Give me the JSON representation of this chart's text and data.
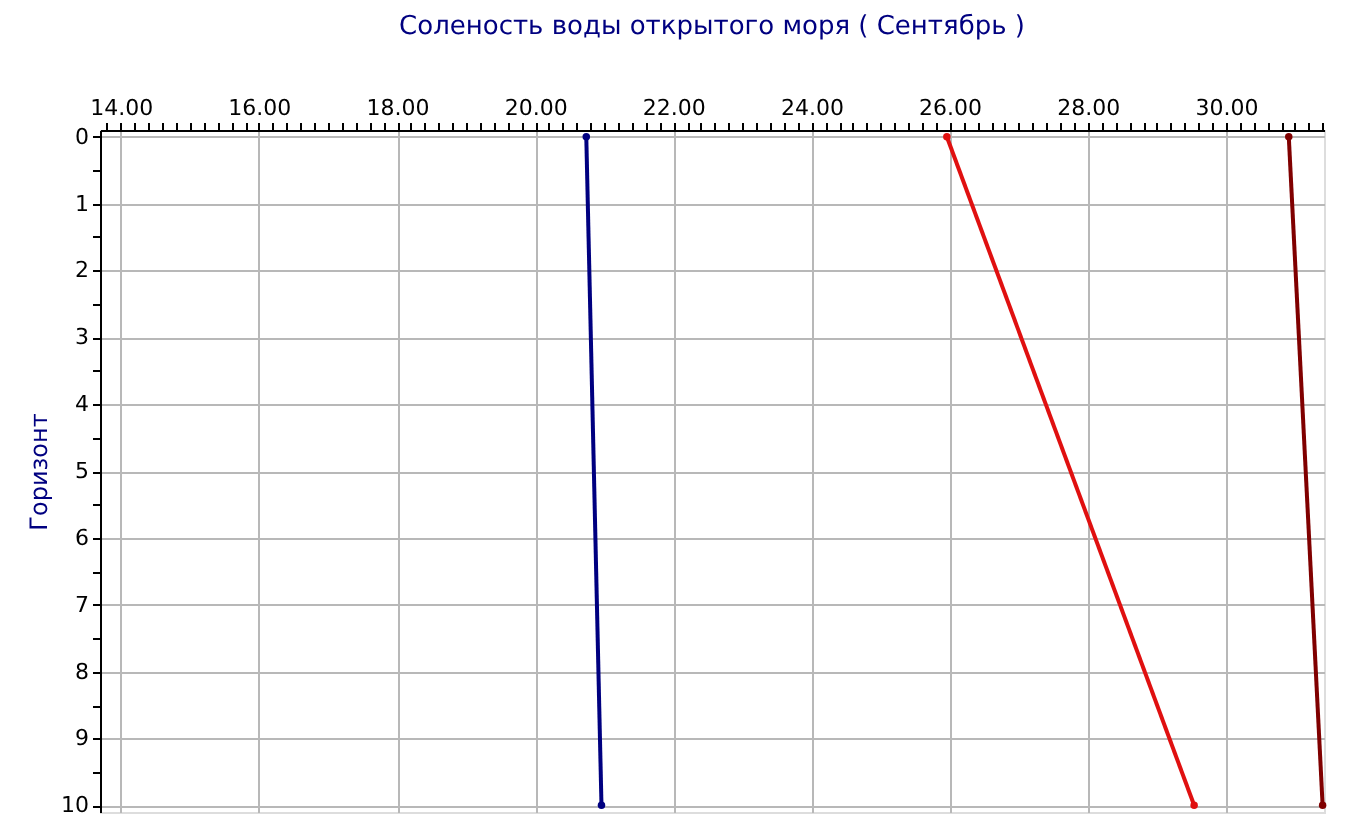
{
  "chart_data": {
    "type": "line",
    "title": "Соленость воды открытого моря    ( Сентябрь )",
    "ylabel": "Горизонт",
    "xlim": [
      13.7,
      31.42
    ],
    "ylim": [
      10.1,
      -0.1
    ],
    "grid": true,
    "marker": "circle",
    "line_style": "solid",
    "xticks": [
      {
        "value": 13.8,
        "label": null
      },
      {
        "value": 14,
        "label": "14.00"
      },
      {
        "value": 14.2,
        "label": null
      },
      {
        "value": 14.4,
        "label": null
      },
      {
        "value": 14.6,
        "label": null
      },
      {
        "value": 14.8,
        "label": null
      },
      {
        "value": 15,
        "label": null
      },
      {
        "value": 15.2,
        "label": null
      },
      {
        "value": 15.4,
        "label": null
      },
      {
        "value": 15.6,
        "label": null
      },
      {
        "value": 15.8,
        "label": null
      },
      {
        "value": 16,
        "label": "16.00"
      },
      {
        "value": 16.2,
        "label": null
      },
      {
        "value": 16.4,
        "label": null
      },
      {
        "value": 16.6,
        "label": null
      },
      {
        "value": 16.8,
        "label": null
      },
      {
        "value": 17,
        "label": null
      },
      {
        "value": 17.2,
        "label": null
      },
      {
        "value": 17.4,
        "label": null
      },
      {
        "value": 17.6,
        "label": null
      },
      {
        "value": 17.8,
        "label": null
      },
      {
        "value": 18,
        "label": "18.00"
      },
      {
        "value": 18.2,
        "label": null
      },
      {
        "value": 18.4,
        "label": null
      },
      {
        "value": 18.6,
        "label": null
      },
      {
        "value": 18.8,
        "label": null
      },
      {
        "value": 19,
        "label": null
      },
      {
        "value": 19.2,
        "label": null
      },
      {
        "value": 19.4,
        "label": null
      },
      {
        "value": 19.6,
        "label": null
      },
      {
        "value": 19.8,
        "label": null
      },
      {
        "value": 20,
        "label": "20.00"
      },
      {
        "value": 20.2,
        "label": null
      },
      {
        "value": 20.4,
        "label": null
      },
      {
        "value": 20.6,
        "label": null
      },
      {
        "value": 20.8,
        "label": null
      },
      {
        "value": 21,
        "label": null
      },
      {
        "value": 21.2,
        "label": null
      },
      {
        "value": 21.4,
        "label": null
      },
      {
        "value": 21.6,
        "label": null
      },
      {
        "value": 21.8,
        "label": null
      },
      {
        "value": 22,
        "label": "22.00"
      },
      {
        "value": 22.2,
        "label": null
      },
      {
        "value": 22.4,
        "label": null
      },
      {
        "value": 22.6,
        "label": null
      },
      {
        "value": 22.8,
        "label": null
      },
      {
        "value": 23,
        "label": null
      },
      {
        "value": 23.2,
        "label": null
      },
      {
        "value": 23.4,
        "label": null
      },
      {
        "value": 23.6,
        "label": null
      },
      {
        "value": 23.8,
        "label": null
      },
      {
        "value": 24,
        "label": "24.00"
      },
      {
        "value": 24.2,
        "label": null
      },
      {
        "value": 24.4,
        "label": null
      },
      {
        "value": 24.6,
        "label": null
      },
      {
        "value": 24.8,
        "label": null
      },
      {
        "value": 25,
        "label": null
      },
      {
        "value": 25.2,
        "label": null
      },
      {
        "value": 25.4,
        "label": null
      },
      {
        "value": 25.6,
        "label": null
      },
      {
        "value": 25.8,
        "label": null
      },
      {
        "value": 26,
        "label": "26.00"
      },
      {
        "value": 26.2,
        "label": null
      },
      {
        "value": 26.4,
        "label": null
      },
      {
        "value": 26.6,
        "label": null
      },
      {
        "value": 26.8,
        "label": null
      },
      {
        "value": 27,
        "label": null
      },
      {
        "value": 27.2,
        "label": null
      },
      {
        "value": 27.4,
        "label": null
      },
      {
        "value": 27.6,
        "label": null
      },
      {
        "value": 27.8,
        "label": null
      },
      {
        "value": 28,
        "label": "28.00"
      },
      {
        "value": 28.2,
        "label": null
      },
      {
        "value": 28.4,
        "label": null
      },
      {
        "value": 28.6,
        "label": null
      },
      {
        "value": 28.8,
        "label": null
      },
      {
        "value": 29,
        "label": null
      },
      {
        "value": 29.2,
        "label": null
      },
      {
        "value": 29.4,
        "label": null
      },
      {
        "value": 29.6,
        "label": null
      },
      {
        "value": 29.8,
        "label": null
      },
      {
        "value": 30,
        "label": "30.00"
      },
      {
        "value": 30.2,
        "label": null
      },
      {
        "value": 30.4,
        "label": null
      },
      {
        "value": 30.6,
        "label": null
      },
      {
        "value": 30.8,
        "label": null
      },
      {
        "value": 31,
        "label": null
      },
      {
        "value": 31.2,
        "label": null
      },
      {
        "value": 31.4,
        "label": null
      }
    ],
    "yticks": [
      0,
      {
        "value": 0.5,
        "label": null
      },
      1,
      {
        "value": 1.5,
        "label": null
      },
      2,
      {
        "value": 2.5,
        "label": null
      },
      3,
      {
        "value": 3.5,
        "label": null
      },
      4,
      {
        "value": 4.5,
        "label": null
      },
      5,
      {
        "value": 5.5,
        "label": null
      },
      6,
      {
        "value": 6.5,
        "label": null
      },
      7,
      {
        "value": 7.5,
        "label": null
      },
      8,
      {
        "value": 8.5,
        "label": null
      },
      9,
      {
        "value": 9.5,
        "label": null
      },
      10
    ],
    "series": [
      {
        "color": "#000080",
        "x": [
          20.74,
          20.96
        ],
        "values": [
          0,
          10
        ]
      },
      {
        "color": "#e01010",
        "x": [
          25.96,
          29.54
        ],
        "values": [
          0,
          10
        ]
      },
      {
        "color": "#800000",
        "x": [
          30.91,
          31.4
        ],
        "values": [
          0,
          10
        ]
      }
    ]
  }
}
